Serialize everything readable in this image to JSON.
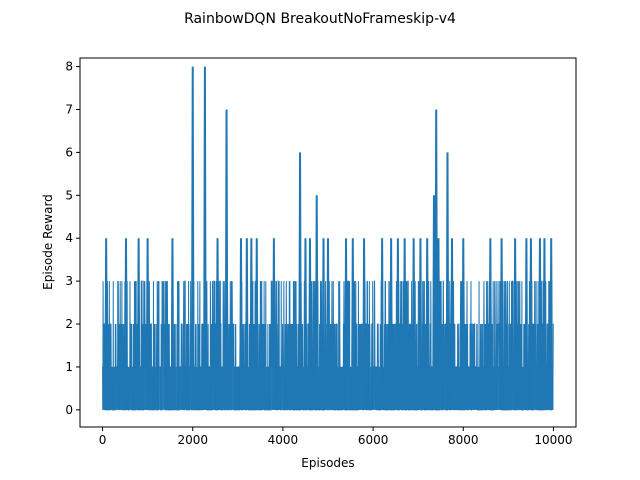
{
  "chart_data": {
    "type": "line",
    "title": "RainbowDQN  BreakoutNoFrameskip-v4",
    "xlabel": "Episodes",
    "ylabel": "Episode Reward",
    "xlim": [
      -500,
      10500
    ],
    "ylim": [
      -0.4,
      8.2
    ],
    "xticks": [
      0,
      2000,
      4000,
      6000,
      8000,
      10000
    ],
    "yticks": [
      0,
      1,
      2,
      3,
      4,
      5,
      6,
      7,
      8
    ],
    "grid": false,
    "legend": "none",
    "series": [
      {
        "color": "#1f77b4",
        "x_range": [
          0,
          10000
        ],
        "baseline_oscillation": [
          0,
          3
        ],
        "spikes": [
          {
            "x": 80,
            "y": 4
          },
          {
            "x": 520,
            "y": 4
          },
          {
            "x": 800,
            "y": 4
          },
          {
            "x": 1000,
            "y": 4
          },
          {
            "x": 1550,
            "y": 4
          },
          {
            "x": 2000,
            "y": 8
          },
          {
            "x": 2270,
            "y": 8
          },
          {
            "x": 2550,
            "y": 4
          },
          {
            "x": 2750,
            "y": 7
          },
          {
            "x": 3070,
            "y": 4
          },
          {
            "x": 3200,
            "y": 4
          },
          {
            "x": 3300,
            "y": 4
          },
          {
            "x": 3420,
            "y": 4
          },
          {
            "x": 3800,
            "y": 4
          },
          {
            "x": 4380,
            "y": 6
          },
          {
            "x": 4500,
            "y": 4
          },
          {
            "x": 4600,
            "y": 4
          },
          {
            "x": 4750,
            "y": 5
          },
          {
            "x": 4900,
            "y": 4
          },
          {
            "x": 5000,
            "y": 4
          },
          {
            "x": 5400,
            "y": 4
          },
          {
            "x": 5550,
            "y": 4
          },
          {
            "x": 5800,
            "y": 4
          },
          {
            "x": 6200,
            "y": 4
          },
          {
            "x": 6400,
            "y": 4
          },
          {
            "x": 6550,
            "y": 4
          },
          {
            "x": 6700,
            "y": 4
          },
          {
            "x": 6900,
            "y": 4
          },
          {
            "x": 7050,
            "y": 4
          },
          {
            "x": 7200,
            "y": 4
          },
          {
            "x": 7350,
            "y": 5
          },
          {
            "x": 7400,
            "y": 7
          },
          {
            "x": 7450,
            "y": 4
          },
          {
            "x": 7650,
            "y": 6
          },
          {
            "x": 7750,
            "y": 4
          },
          {
            "x": 8000,
            "y": 4
          },
          {
            "x": 8600,
            "y": 4
          },
          {
            "x": 8850,
            "y": 4
          },
          {
            "x": 9150,
            "y": 4
          },
          {
            "x": 9400,
            "y": 4
          },
          {
            "x": 9500,
            "y": 4
          },
          {
            "x": 9700,
            "y": 4
          },
          {
            "x": 9800,
            "y": 4
          },
          {
            "x": 9950,
            "y": 4
          }
        ]
      }
    ]
  }
}
